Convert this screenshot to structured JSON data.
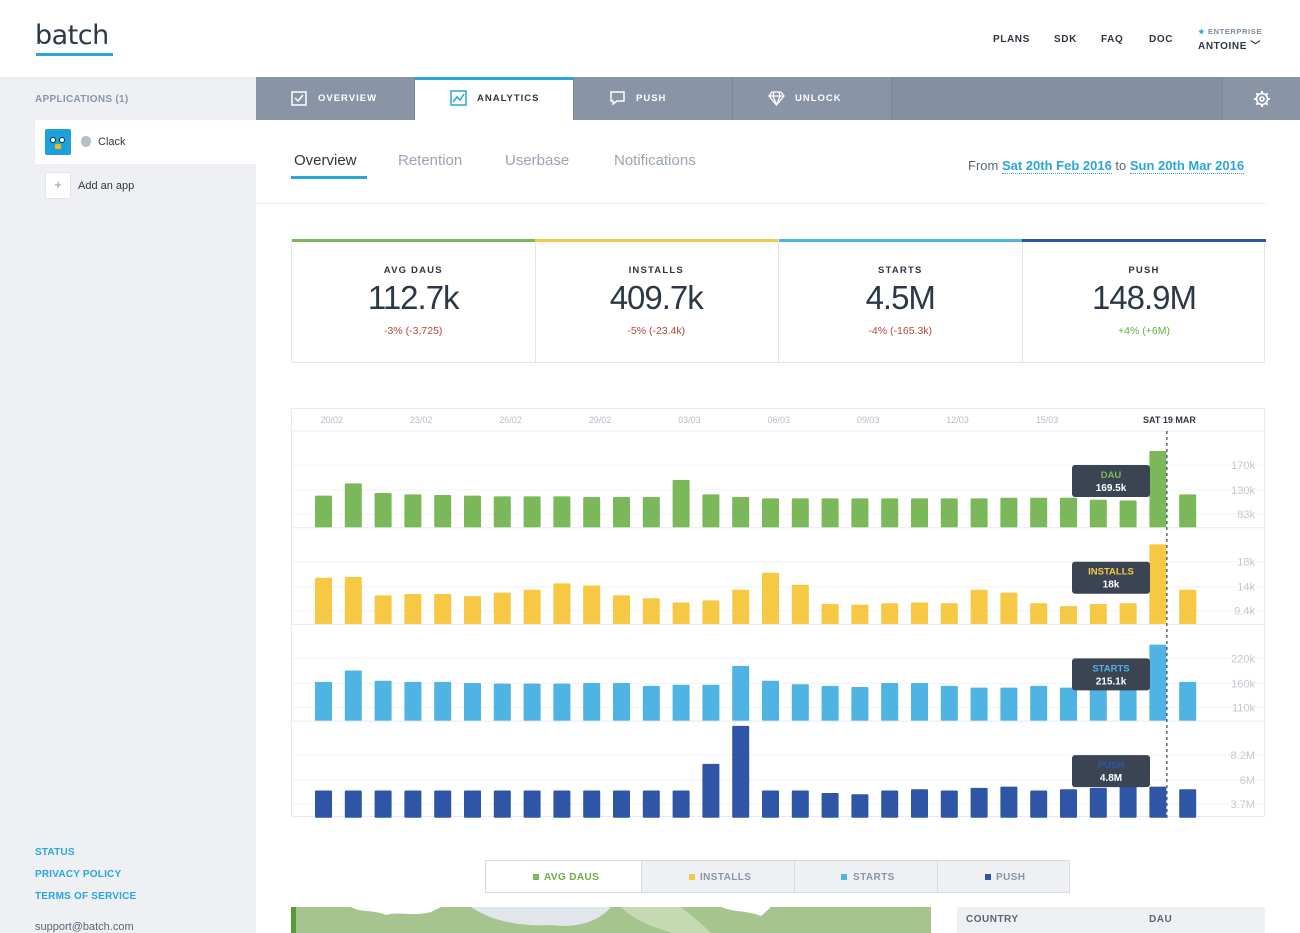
{
  "header": {
    "logo": "batch",
    "nav": [
      "PLANS",
      "SDK",
      "FAQ",
      "DOC"
    ],
    "plan": "ENTERPRISE",
    "user": "ANTOINE"
  },
  "sidebar": {
    "apps_title": "APPLICATIONS (1)",
    "app_name": "Clack",
    "add_app": "Add an app",
    "footer_links": [
      "STATUS",
      "PRIVACY POLICY",
      "TERMS OF SERVICE"
    ],
    "support_email": "support@batch.com"
  },
  "tabs": [
    {
      "label": "OVERVIEW",
      "icon": "checkbox-icon"
    },
    {
      "label": "ANALYTICS",
      "icon": "line-chart-icon"
    },
    {
      "label": "PUSH",
      "icon": "chat-bubble-icon"
    },
    {
      "label": "UNLOCK",
      "icon": "diamond-icon"
    }
  ],
  "subtabs": [
    "Overview",
    "Retention",
    "Userbase",
    "Notifications"
  ],
  "daterange": {
    "from_label": "From",
    "from": "Sat 20th Feb 2016",
    "to_label": "to",
    "to": "Sun 20th Mar 2016"
  },
  "kpis": [
    {
      "label": "AVG DAUS",
      "value": "112.7k",
      "delta": "-3% (-3,725)",
      "trend": "neg",
      "color": "#7bb85a"
    },
    {
      "label": "INSTALLS",
      "value": "409.7k",
      "delta": "-5% (-23.4k)",
      "trend": "neg",
      "color": "#f6c844"
    },
    {
      "label": "STARTS",
      "value": "4.5M",
      "delta": "-4% (-165.3k)",
      "trend": "neg",
      "color": "#4fb3e3"
    },
    {
      "label": "PUSH",
      "value": "148.9M",
      "delta": "+4% (+6M)",
      "trend": "pos",
      "color": "#2f56a6"
    }
  ],
  "chart_data": {
    "type": "bar",
    "x_labels": [
      "20/02",
      "23/02",
      "26/02",
      "29/02",
      "03/03",
      "06/03",
      "09/03",
      "12/03",
      "15/03"
    ],
    "highlight_label": "SAT 19 MAR",
    "highlight_index": 28,
    "series": [
      {
        "name": "DAU",
        "color": "#7bb85a",
        "ticks": [
          "170k",
          "130k",
          "83k"
        ],
        "ylim": [
          60,
          190
        ],
        "values": [
          104,
          122,
          108,
          106,
          105,
          104,
          103,
          103,
          103,
          102,
          102,
          102,
          127,
          106,
          102,
          100,
          100,
          100,
          100,
          100,
          100,
          100,
          100,
          101,
          101,
          101,
          98,
          97,
          169.5,
          106
        ],
        "tooltip_label": "DAU",
        "tooltip_value": "169.5k"
      },
      {
        "name": "INSTALLS",
        "color": "#f6c844",
        "ticks": [
          "18k",
          "14k",
          "9.4k"
        ],
        "ylim": [
          7,
          19.5
        ],
        "values": [
          13.3,
          13.4,
          10.8,
          11.0,
          11.0,
          10.7,
          11.2,
          11.6,
          12.5,
          12.2,
          10.8,
          10.4,
          9.8,
          10.1,
          11.6,
          14.0,
          12.3,
          9.6,
          9.5,
          9.7,
          9.8,
          9.7,
          11.6,
          11.2,
          9.7,
          9.3,
          9.6,
          9.7,
          18,
          11.6
        ],
        "tooltip_label": "INSTALLS",
        "tooltip_value": "18k"
      },
      {
        "name": "STARTS",
        "color": "#4fb3e3",
        "ticks": [
          "220k",
          "160k",
          "110k"
        ],
        "ylim": [
          85,
          240
        ],
        "values": [
          150,
          170,
          152,
          150,
          150,
          148,
          147,
          147,
          147,
          148,
          148,
          143,
          145,
          145,
          178,
          152,
          146,
          143,
          141,
          148,
          148,
          143,
          140,
          140,
          143,
          140,
          143,
          140,
          215.1,
          150
        ],
        "tooltip_label": "STARTS",
        "tooltip_value": "215.1k"
      },
      {
        "name": "PUSH",
        "color": "#2f56a6",
        "ticks": [
          "8.2M",
          "6M",
          "3.7M"
        ],
        "ylim": [
          2.5,
          9.5
        ],
        "values": [
          4.5,
          4.5,
          4.5,
          4.5,
          4.5,
          4.5,
          4.5,
          4.5,
          4.5,
          4.5,
          4.5,
          4.5,
          4.5,
          6.6,
          9.6,
          4.5,
          4.5,
          4.3,
          4.2,
          4.5,
          4.6,
          4.5,
          4.7,
          4.8,
          4.5,
          4.6,
          4.7,
          5.1,
          4.8,
          4.6
        ],
        "tooltip_label": "PUSH",
        "tooltip_value": "4.8M"
      }
    ]
  },
  "legend": [
    {
      "label": "AVG DAUS",
      "color": "#7bb85a"
    },
    {
      "label": "INSTALLS",
      "color": "#f6c844"
    },
    {
      "label": "STARTS",
      "color": "#4fb3e3"
    },
    {
      "label": "PUSH",
      "color": "#2f56a6"
    }
  ],
  "country_table": {
    "col1": "COUNTRY",
    "col2": "DAU"
  }
}
